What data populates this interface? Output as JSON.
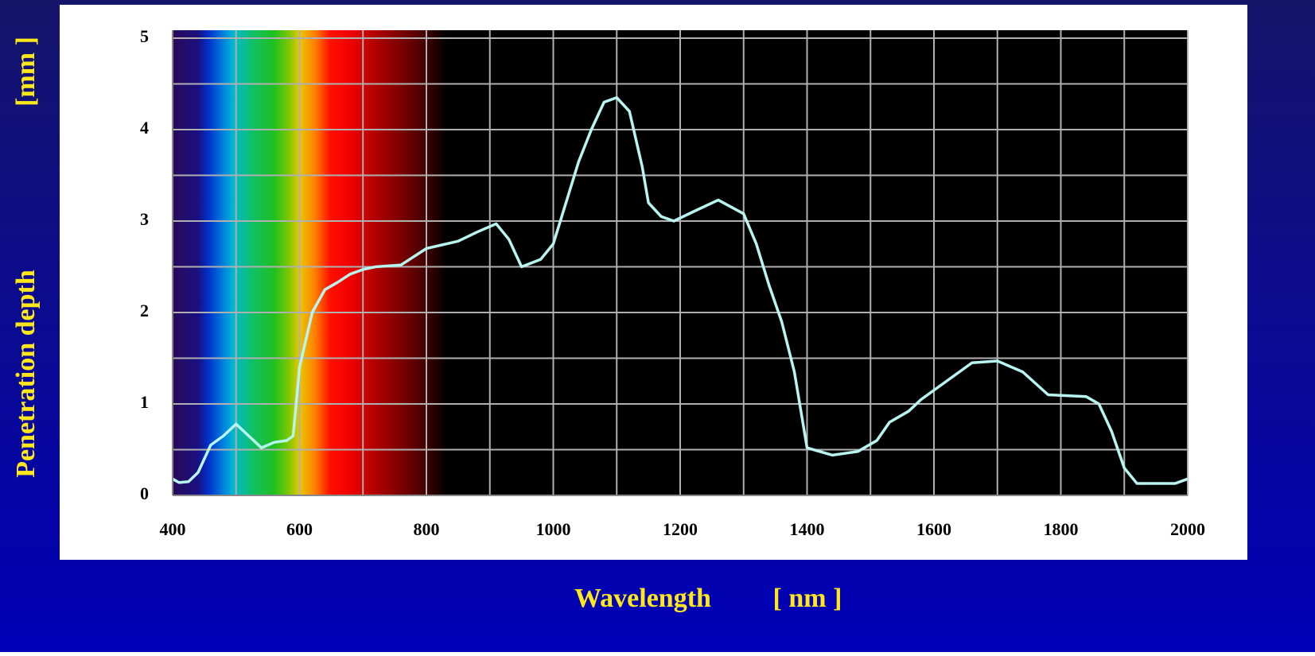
{
  "chart_data": {
    "type": "line",
    "y_label": "Penetration depth",
    "y_unit": "[mm ]",
    "x_label": "Wavelength",
    "x_unit": "[ nm ]",
    "x": [
      400,
      410,
      425,
      440,
      460,
      480,
      500,
      520,
      540,
      560,
      580,
      590,
      600,
      620,
      640,
      660,
      680,
      700,
      720,
      760,
      800,
      850,
      880,
      910,
      930,
      950,
      980,
      1000,
      1020,
      1040,
      1060,
      1080,
      1100,
      1120,
      1140,
      1150,
      1170,
      1190,
      1220,
      1260,
      1300,
      1320,
      1340,
      1360,
      1380,
      1400,
      1440,
      1480,
      1510,
      1530,
      1560,
      1580,
      1620,
      1660,
      1700,
      1740,
      1780,
      1840,
      1860,
      1880,
      1900,
      1920,
      1980,
      2000
    ],
    "series": [
      {
        "color": "#b8f4f0",
        "values": [
          0.18,
          0.14,
          0.15,
          0.25,
          0.55,
          0.65,
          0.78,
          0.65,
          0.52,
          0.58,
          0.6,
          0.65,
          1.4,
          2.0,
          2.25,
          2.33,
          2.42,
          2.47,
          2.5,
          2.52,
          2.7,
          2.78,
          2.88,
          2.97,
          2.8,
          2.5,
          2.58,
          2.75,
          3.2,
          3.65,
          4.0,
          4.3,
          4.35,
          4.2,
          3.6,
          3.2,
          3.05,
          3.0,
          3.1,
          3.23,
          3.08,
          2.75,
          2.3,
          1.9,
          1.35,
          0.52,
          0.44,
          0.48,
          0.6,
          0.8,
          0.92,
          1.05,
          1.25,
          1.45,
          1.47,
          1.35,
          1.1,
          1.08,
          1.0,
          0.7,
          0.3,
          0.13,
          0.13,
          0.18
        ]
      }
    ],
    "xlim": [
      400,
      2000
    ],
    "xticks": [
      400,
      600,
      800,
      1000,
      1200,
      1400,
      1600,
      1800,
      2000
    ],
    "ylim": [
      0,
      5
    ],
    "yticks": [
      0,
      1,
      2,
      3,
      4,
      5
    ],
    "grid": true
  }
}
